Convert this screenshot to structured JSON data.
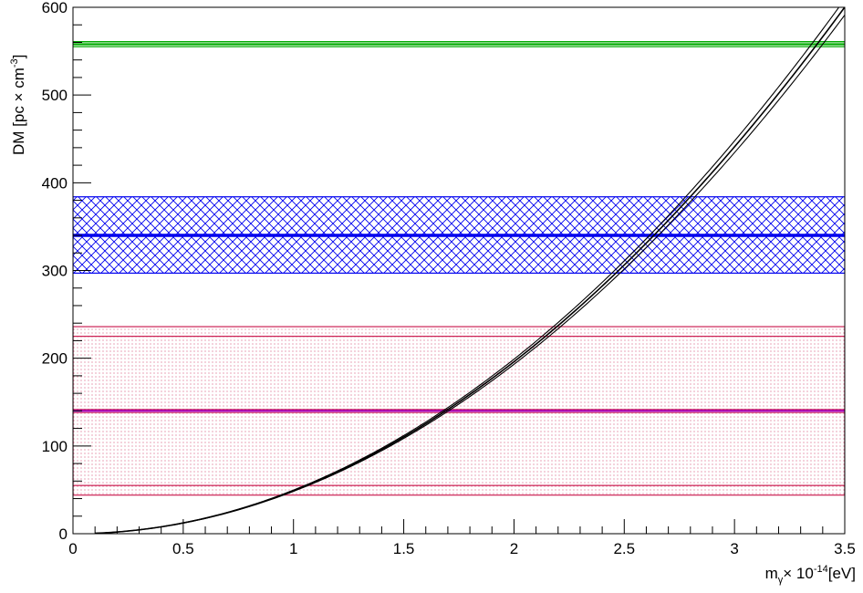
{
  "chart_data": {
    "type": "line",
    "title": "",
    "xlabel": "mγ× 10⁻¹⁴[eV]",
    "xlabel_parts": {
      "m": "m",
      "sub": "γ",
      "mid": "× 10",
      "sup": "-14",
      "tail": "[eV]"
    },
    "ylabel": "DM [pc × cm⁻³]",
    "ylabel_parts": {
      "main": "DM  [pc × cm",
      "sup": "-3",
      "tail": "]"
    },
    "xlim": [
      0,
      3.5
    ],
    "ylim": [
      0,
      600
    ],
    "x_ticks": [
      0,
      0.5,
      1,
      1.5,
      2,
      2.5,
      3,
      3.5
    ],
    "x_tick_labels": [
      "0",
      "0.5",
      "1",
      "1.5",
      "2",
      "2.5",
      "3",
      "3.5"
    ],
    "y_ticks": [
      0,
      100,
      200,
      300,
      400,
      500,
      600
    ],
    "y_tick_labels": [
      "0",
      "100",
      "200",
      "300",
      "400",
      "500",
      "600"
    ],
    "grid": false,
    "curve": {
      "type": "power",
      "coefficient": 49,
      "exponent": 2,
      "band_variants": [
        0.985,
        1.0,
        1.015
      ],
      "x_range": [
        0.1,
        3.5
      ],
      "color": "#000000"
    },
    "bands": [
      {
        "center": 558,
        "low": 555,
        "high": 561,
        "color": "#00aa00",
        "pattern": "lines"
      },
      {
        "center": 340,
        "low": 297,
        "high": 384,
        "color": "#0000ee",
        "pattern": "crosshatch"
      },
      {
        "center": 140,
        "low": 44,
        "high": 236,
        "inner_low": 55,
        "inner_high": 225,
        "color": "#cc2255",
        "pattern": "dots",
        "center_color": "#aa00aa"
      }
    ]
  }
}
